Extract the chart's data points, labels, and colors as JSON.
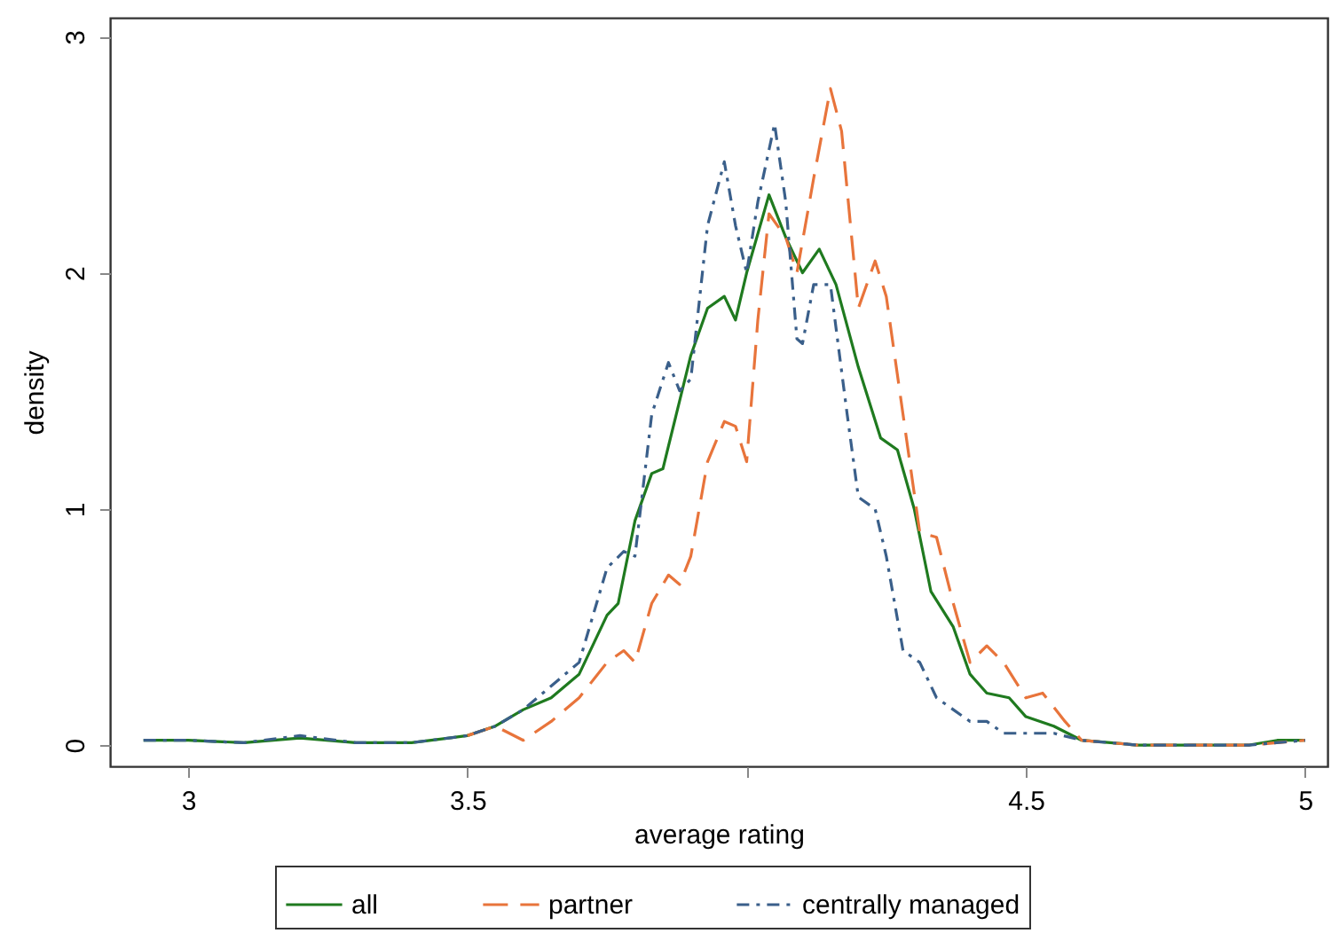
{
  "chart_data": {
    "type": "line",
    "xlabel": "average rating",
    "ylabel": "density",
    "xlim": [
      2.86,
      5.04
    ],
    "ylim": [
      -0.09,
      3.08
    ],
    "xticks": [
      {
        "value": 3,
        "label": "3"
      },
      3.5,
      {
        "value": 4,
        "label": null
      },
      4.5,
      {
        "value": 5,
        "label": "5"
      }
    ],
    "yticks": [
      0,
      1,
      2,
      3
    ],
    "grid": false,
    "legend": "bottom",
    "marker": "none",
    "series": [
      {
        "name": "all",
        "color": "#1f7a1f",
        "line_style": "solid",
        "x": [
          2.92,
          3.0,
          3.1,
          3.2,
          3.3,
          3.4,
          3.5,
          3.55,
          3.6,
          3.65,
          3.7,
          3.75,
          3.77,
          3.8,
          3.83,
          3.85,
          3.9,
          3.93,
          3.96,
          3.98,
          4.0,
          4.04,
          4.07,
          4.1,
          4.13,
          4.16,
          4.2,
          4.24,
          4.27,
          4.3,
          4.33,
          4.37,
          4.4,
          4.43,
          4.47,
          4.5,
          4.55,
          4.6,
          4.7,
          4.8,
          4.9,
          4.95,
          5.0
        ],
        "values": [
          0.02,
          0.02,
          0.01,
          0.03,
          0.01,
          0.01,
          0.04,
          0.08,
          0.15,
          0.2,
          0.3,
          0.55,
          0.6,
          0.95,
          1.15,
          1.17,
          1.65,
          1.85,
          1.9,
          1.8,
          2.0,
          2.33,
          2.15,
          2.0,
          2.1,
          1.95,
          1.6,
          1.3,
          1.25,
          1.0,
          0.65,
          0.5,
          0.3,
          0.22,
          0.2,
          0.12,
          0.08,
          0.02,
          0.0,
          0.0,
          0.0,
          0.02,
          0.02
        ]
      },
      {
        "name": "partner",
        "color": "#e8743b",
        "line_style": "dashed",
        "x": [
          3.5,
          3.55,
          3.6,
          3.65,
          3.7,
          3.75,
          3.78,
          3.8,
          3.83,
          3.86,
          3.88,
          3.9,
          3.93,
          3.96,
          3.98,
          4.0,
          4.02,
          4.04,
          4.07,
          4.09,
          4.12,
          4.15,
          4.17,
          4.2,
          4.23,
          4.25,
          4.28,
          4.31,
          4.34,
          4.37,
          4.4,
          4.43,
          4.46,
          4.5,
          4.53,
          4.57,
          4.6,
          4.7,
          4.8,
          4.9,
          5.0
        ],
        "values": [
          0.04,
          0.08,
          0.02,
          0.1,
          0.2,
          0.35,
          0.4,
          0.35,
          0.6,
          0.72,
          0.68,
          0.8,
          1.2,
          1.37,
          1.35,
          1.2,
          1.8,
          2.25,
          2.15,
          2.0,
          2.4,
          2.78,
          2.6,
          1.85,
          2.05,
          1.9,
          1.4,
          0.9,
          0.88,
          0.6,
          0.35,
          0.42,
          0.35,
          0.2,
          0.22,
          0.1,
          0.02,
          0.0,
          0.0,
          0.0,
          0.02
        ]
      },
      {
        "name": "centrally managed",
        "color": "#3a5f8a",
        "line_style": "dotted",
        "x": [
          2.92,
          3.0,
          3.1,
          3.2,
          3.3,
          3.4,
          3.5,
          3.55,
          3.6,
          3.65,
          3.7,
          3.75,
          3.78,
          3.8,
          3.83,
          3.86,
          3.88,
          3.9,
          3.93,
          3.96,
          3.98,
          4.0,
          4.02,
          4.05,
          4.07,
          4.09,
          4.1,
          4.12,
          4.15,
          4.18,
          4.2,
          4.23,
          4.25,
          4.28,
          4.31,
          4.34,
          4.37,
          4.4,
          4.43,
          4.46,
          4.5,
          4.55,
          4.6,
          4.7,
          4.8,
          4.9,
          5.0
        ],
        "values": [
          0.02,
          0.02,
          0.01,
          0.04,
          0.01,
          0.01,
          0.04,
          0.08,
          0.15,
          0.25,
          0.35,
          0.75,
          0.82,
          0.8,
          1.4,
          1.62,
          1.5,
          1.55,
          2.2,
          2.47,
          2.2,
          2.0,
          2.3,
          2.63,
          2.3,
          1.72,
          1.7,
          1.95,
          1.95,
          1.4,
          1.05,
          1.0,
          0.8,
          0.4,
          0.35,
          0.2,
          0.15,
          0.1,
          0.1,
          0.05,
          0.05,
          0.05,
          0.02,
          0.0,
          0.0,
          0.0,
          0.02
        ]
      }
    ]
  }
}
